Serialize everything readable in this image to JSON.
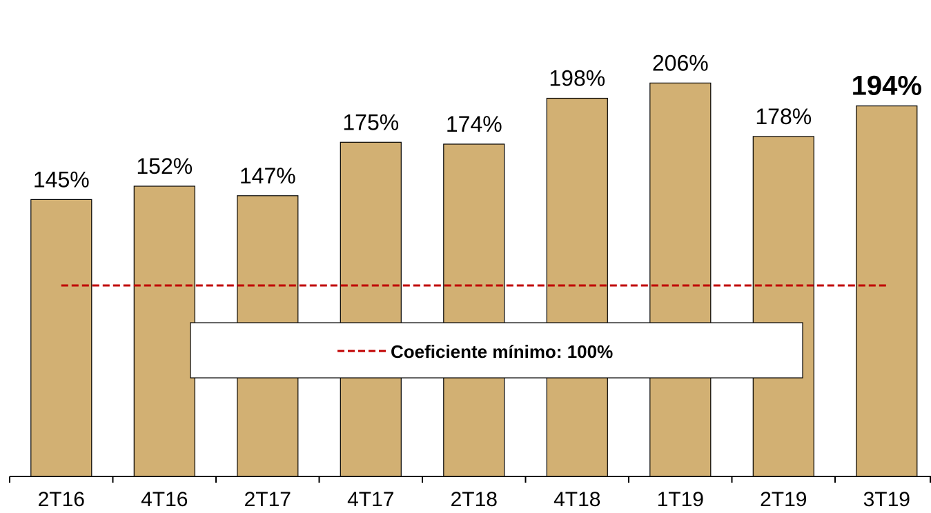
{
  "chart_data": {
    "type": "bar",
    "categories": [
      "2T16",
      "4T16",
      "2T17",
      "4T17",
      "2T18",
      "4T18",
      "1T19",
      "2T19",
      "3T19"
    ],
    "values": [
      145,
      152,
      147,
      175,
      174,
      198,
      206,
      178,
      194
    ],
    "data_labels": [
      "145%",
      "152%",
      "147%",
      "175%",
      "174%",
      "198%",
      "206%",
      "178%",
      "194%"
    ],
    "highlighted_category": "3T19",
    "ylim": [
      0,
      240
    ],
    "grid": false,
    "bar_color": "#D2B073",
    "reference_line": {
      "value": 100,
      "label": "Coeficiente mínimo: 100%",
      "color": "#C00000",
      "style": "dashed"
    },
    "legend": {
      "placement": "bottom-center",
      "entries": [
        "Coeficiente mínimo: 100%"
      ]
    }
  }
}
